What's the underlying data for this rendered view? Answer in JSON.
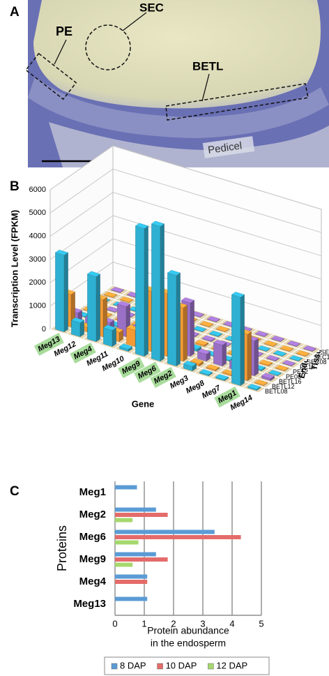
{
  "panel_a": {
    "label": "A",
    "annotations": [
      "PE",
      "SEC",
      "BETL",
      "Pedicel"
    ]
  },
  "chart_data": [
    {
      "type": "bar3d",
      "panel_label": "B",
      "y_label": "Transcription Level (FPKM)",
      "x_label": "Gene",
      "depth_label": [
        "Endosperm",
        "Tissue"
      ],
      "categories": [
        "Meg13",
        "Meg12",
        "Meg4",
        "Meg11",
        "Meg10",
        "Meg9",
        "Meg6",
        "Meg2",
        "Meg3",
        "Meg8",
        "Meg7",
        "Meg1",
        "Meg14"
      ],
      "highlighted": [
        true,
        false,
        true,
        false,
        false,
        true,
        true,
        true,
        false,
        false,
        false,
        true,
        false
      ],
      "highlight_color": "#a9dc9c",
      "ylim": [
        0,
        6000
      ],
      "yticks": [
        0,
        1000,
        2000,
        3000,
        4000,
        5000,
        6000
      ],
      "series": [
        {
          "name": "BETL08",
          "color": "#2eb0d2",
          "values": [
            3300,
            600,
            2800,
            700,
            100,
            5500,
            5800,
            3900,
            200,
            50,
            50,
            3800,
            50
          ]
        },
        {
          "name": "BETL12",
          "color": "#f39a35",
          "values": [
            1400,
            200,
            1600,
            400,
            700,
            2600,
            2700,
            2300,
            100,
            50,
            50,
            2000,
            20
          ]
        },
        {
          "name": "BETL16",
          "color": "#9a70c6",
          "values": [
            400,
            300,
            400,
            1300,
            600,
            50,
            100,
            2300,
            300,
            900,
            300,
            1500,
            100
          ]
        },
        {
          "name": "PE08",
          "color": "#2eb0d2",
          "values": [
            30,
            20,
            40,
            20,
            30,
            60,
            80,
            100,
            30,
            40,
            30,
            50,
            20
          ]
        },
        {
          "name": "PE12",
          "color": "#f39a35",
          "values": [
            20,
            20,
            30,
            20,
            20,
            40,
            50,
            60,
            20,
            30,
            20,
            40,
            20
          ]
        },
        {
          "name": "PE16",
          "color": "#9a70c6",
          "values": [
            20,
            20,
            20,
            20,
            20,
            30,
            30,
            40,
            20,
            20,
            20,
            30,
            20
          ]
        },
        {
          "name": "SEC08",
          "color": "#2eb0d2",
          "values": [
            20,
            20,
            20,
            20,
            20,
            20,
            20,
            30,
            20,
            20,
            20,
            20,
            20
          ]
        },
        {
          "name": "SEC12",
          "color": "#f39a35",
          "values": [
            20,
            20,
            20,
            20,
            20,
            20,
            20,
            20,
            20,
            20,
            20,
            20,
            20
          ]
        },
        {
          "name": "SEC16",
          "color": "#9a70c6",
          "values": [
            20,
            20,
            20,
            20,
            20,
            20,
            20,
            20,
            20,
            20,
            20,
            20,
            20
          ]
        }
      ]
    },
    {
      "type": "hbar",
      "panel_label": "C",
      "y_label": "Proteins",
      "x_label": [
        "Protein abundance",
        "in the endosperm"
      ],
      "categories": [
        "Meg1",
        "Meg2",
        "Meg6",
        "Meg9",
        "Meg4",
        "Meg13"
      ],
      "xlim": [
        0,
        5
      ],
      "xticks": [
        0,
        1,
        2,
        3,
        4,
        5
      ],
      "grid": true,
      "legend_position": "bottom",
      "series": [
        {
          "name": "8 DAP",
          "color": "#5b9bd5",
          "values": [
            0.75,
            1.4,
            3.4,
            1.4,
            1.1,
            1.1
          ]
        },
        {
          "name": "10 DAP",
          "color": "#e36c6a",
          "values": [
            null,
            1.8,
            4.3,
            1.8,
            1.1,
            null
          ]
        },
        {
          "name": "12 DAP",
          "color": "#a6d86e",
          "values": [
            null,
            0.6,
            0.8,
            0.6,
            null,
            null
          ]
        }
      ]
    }
  ]
}
